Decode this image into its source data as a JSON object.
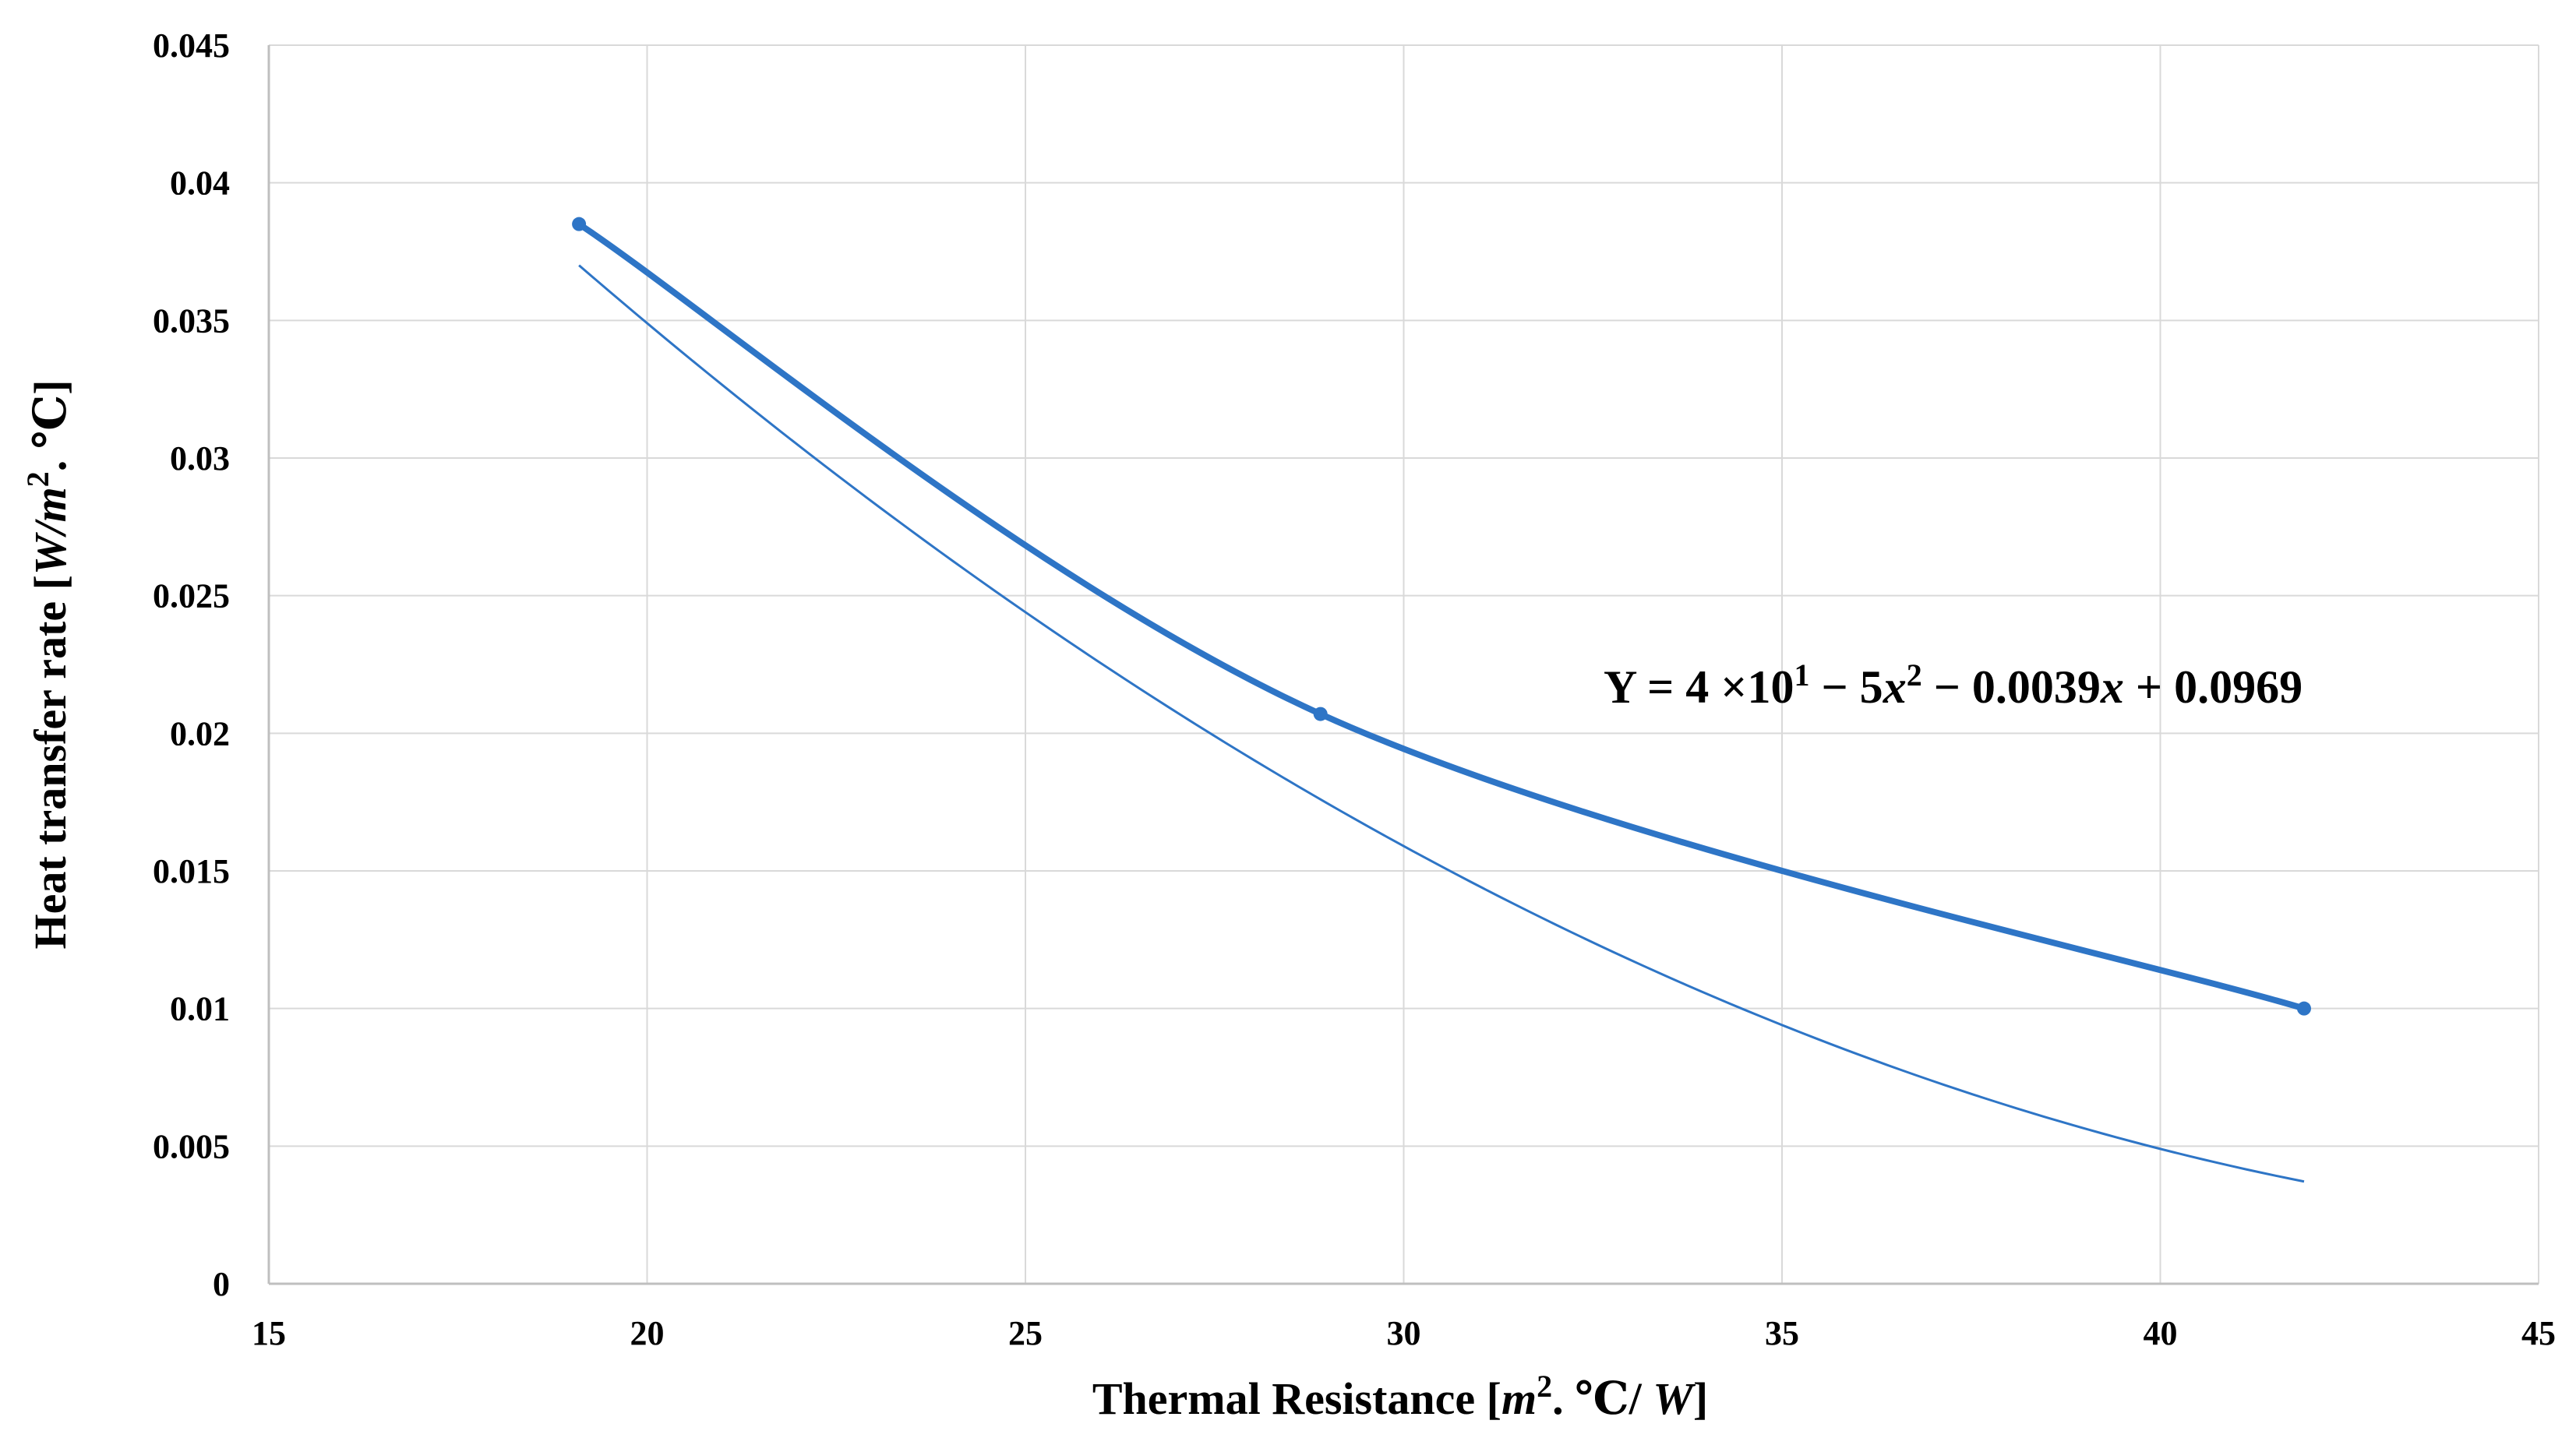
{
  "chart_data": {
    "type": "scatter",
    "title": "",
    "xlabel": {
      "prefix": "Thermal Resistance [",
      "var": "m",
      "sup": "2",
      "rest": ". ℃/ ",
      "var2": "W",
      "suffix": "]"
    },
    "ylabel": {
      "prefix": "Heat transfer rate [",
      "var": "W/m",
      "sup": "2",
      "rest": ". ℃",
      "suffix": "]"
    },
    "xlim": [
      15,
      45
    ],
    "ylim": [
      0,
      0.045
    ],
    "x_ticks": [
      "15",
      "20",
      "25",
      "30",
      "35",
      "40",
      "45"
    ],
    "y_ticks": [
      "0",
      "0.005",
      "0.01",
      "0.015",
      "0.02",
      "0.025",
      "0.03",
      "0.035",
      "0.04",
      "0.045"
    ],
    "grid": true,
    "series": [
      {
        "x": [
          19.1,
          28.9,
          41.9
        ],
        "y": [
          0.0385,
          0.0207,
          0.01
        ],
        "color": "#2e75c6",
        "markers": true,
        "smooth": true
      }
    ],
    "trendline": {
      "type": "polynomial-2",
      "a": 4e-05,
      "b": -0.0039,
      "c": 0.0969,
      "color": "#2e75c6"
    },
    "annotation": {
      "lead": "Y = 4 ×10",
      "sup1": "1",
      "mid1": " − 5",
      "xvar": "x",
      "sup2": "2",
      "mid2": " − 0.0039",
      "xvar2": "x",
      "tail": " + 0.0969"
    }
  }
}
